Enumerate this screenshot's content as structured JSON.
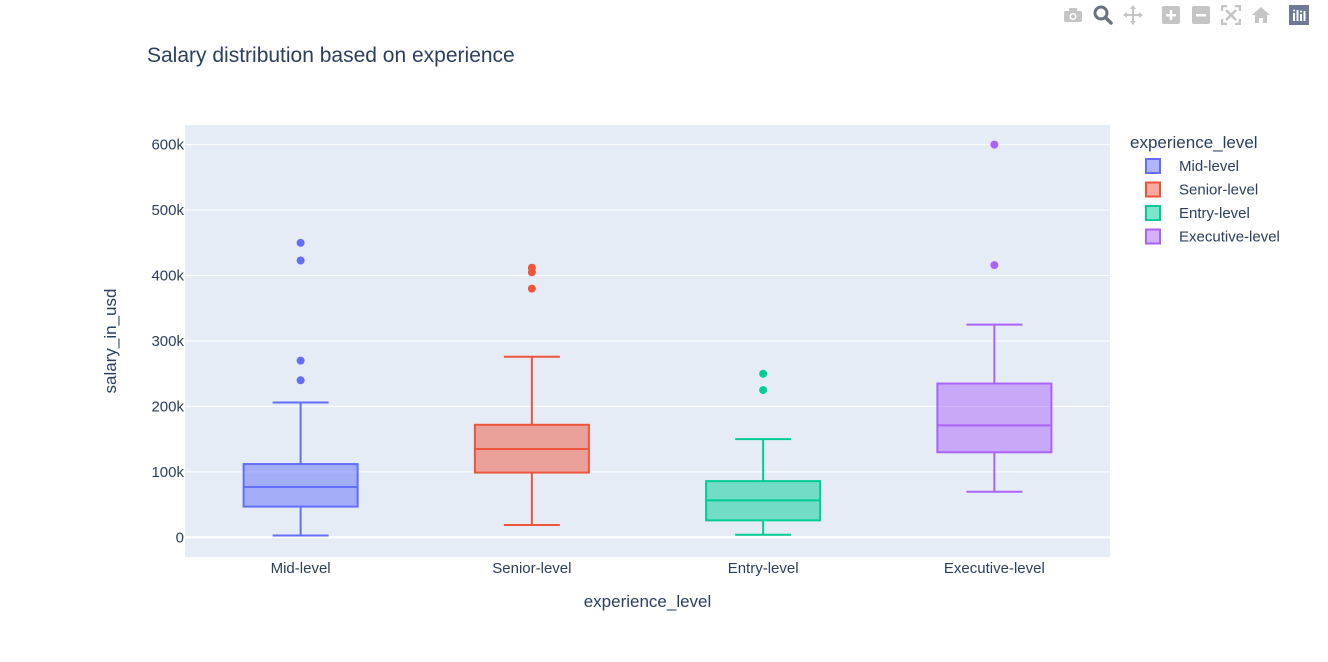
{
  "toolbar": {
    "buttons": [
      {
        "name": "camera-icon",
        "color": "#c5c5c5"
      },
      {
        "name": "zoom-icon",
        "color": "#6b7280"
      },
      {
        "name": "pan-icon",
        "color": "#c5c5c5"
      },
      {
        "name": "zoom-in-icon",
        "color": "#c5c5c5"
      },
      {
        "name": "zoom-out-icon",
        "color": "#c5c5c5"
      },
      {
        "name": "autoscale-icon",
        "color": "#c5c5c5"
      },
      {
        "name": "reset-axes-icon",
        "color": "#c5c5c5"
      },
      {
        "name": "plotly-logo-icon",
        "color": "#6f7a99"
      }
    ]
  },
  "chart_data": {
    "type": "box",
    "title": "Salary distribution based on experience",
    "xlabel": "experience_level",
    "ylabel": "salary_in_usd",
    "ylim": [
      -30000,
      630000
    ],
    "yticks": [
      0,
      100000,
      200000,
      300000,
      400000,
      500000,
      600000
    ],
    "ytick_labels": [
      "0",
      "100k",
      "200k",
      "300k",
      "400k",
      "500k",
      "600k"
    ],
    "grid": true,
    "legend": {
      "title": "experience_level",
      "position": "right"
    },
    "categories": [
      "Mid-level",
      "Senior-level",
      "Entry-level",
      "Executive-level"
    ],
    "series": [
      {
        "name": " Mid-level",
        "category": "Mid-level",
        "color": "#636efa",
        "lower_fence": 2900,
        "q1": 47000,
        "median": 76900,
        "q3": 112000,
        "upper_fence": 206000,
        "outliers": [
          240000,
          270000,
          423000,
          450000
        ]
      },
      {
        "name": "Senior-level",
        "category": "Senior-level",
        "color": "#ef553b",
        "lower_fence": 18900,
        "q1": 99000,
        "median": 135000,
        "q3": 172000,
        "upper_fence": 276000,
        "outliers": [
          380000,
          405000,
          412000
        ]
      },
      {
        "name": "Entry-level",
        "category": "Entry-level",
        "color": "#00cc96",
        "lower_fence": 4000,
        "q1": 26000,
        "median": 56500,
        "q3": 85900,
        "upper_fence": 150000,
        "outliers": [
          225000,
          250000
        ]
      },
      {
        "name": "Executive-level",
        "category": "Executive-level",
        "color": "#ab63fa",
        "lower_fence": 69700,
        "q1": 130000,
        "median": 171000,
        "q3": 235000,
        "upper_fence": 325000,
        "outliers": [
          416000,
          600000
        ]
      }
    ]
  }
}
